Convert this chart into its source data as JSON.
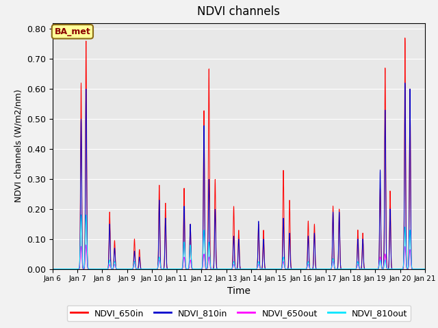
{
  "title": "NDVI channels",
  "xlabel": "Time",
  "ylabel": "NDVI channels (W/m2/nm)",
  "ylim": [
    0.0,
    0.82
  ],
  "annotation": "BA_met",
  "legend_labels": [
    "NDVI_650in",
    "NDVI_810in",
    "NDVI_650out",
    "NDVI_810out"
  ],
  "legend_colors": [
    "#ff0000",
    "#0000cc",
    "#ff00ff",
    "#00e5ff"
  ],
  "colors": {
    "650in": "#ff0000",
    "810in": "#0000cc",
    "650out": "#ff00ff",
    "810out": "#00e5ff"
  },
  "xtick_labels": [
    "Jan 6",
    "Jan 7",
    "Jan 8",
    "Jan 9",
    "Jan 10",
    "Jan 11",
    "Jan 12",
    "Jan 13",
    "Jan 14",
    "Jan 15",
    "Jan 16",
    "Jan 17",
    "Jan 18",
    "Jan 19",
    "Jan 20",
    "Jan 21"
  ],
  "bg_color": "#e8e8e8",
  "grid_color": "#ffffff"
}
